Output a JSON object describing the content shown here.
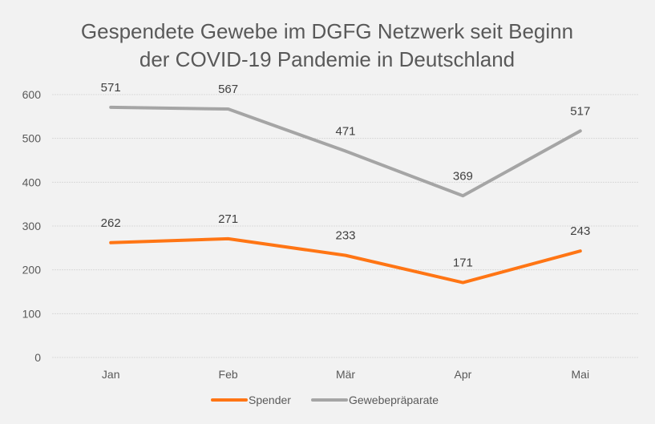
{
  "chart_data": {
    "type": "line",
    "title_lines": [
      "Gespendete Gewebe im DGFG Netzwerk seit Beginn",
      "der COVID-19 Pandemie in Deutschland"
    ],
    "xlabel": "",
    "ylabel": "",
    "categories": [
      "Jan",
      "Feb",
      "Mär",
      "Apr",
      "Mai"
    ],
    "ylim": [
      0,
      600
    ],
    "yticks": [
      0,
      100,
      200,
      300,
      400,
      500,
      600
    ],
    "grid": true,
    "legend_position": "bottom",
    "data_labels": true,
    "series": [
      {
        "name": "Spender",
        "color": "#ff7514",
        "values": [
          262,
          271,
          233,
          171,
          243
        ]
      },
      {
        "name": "Gewebepräparate",
        "color": "#a5a5a5",
        "values": [
          571,
          567,
          471,
          369,
          517
        ]
      }
    ]
  }
}
